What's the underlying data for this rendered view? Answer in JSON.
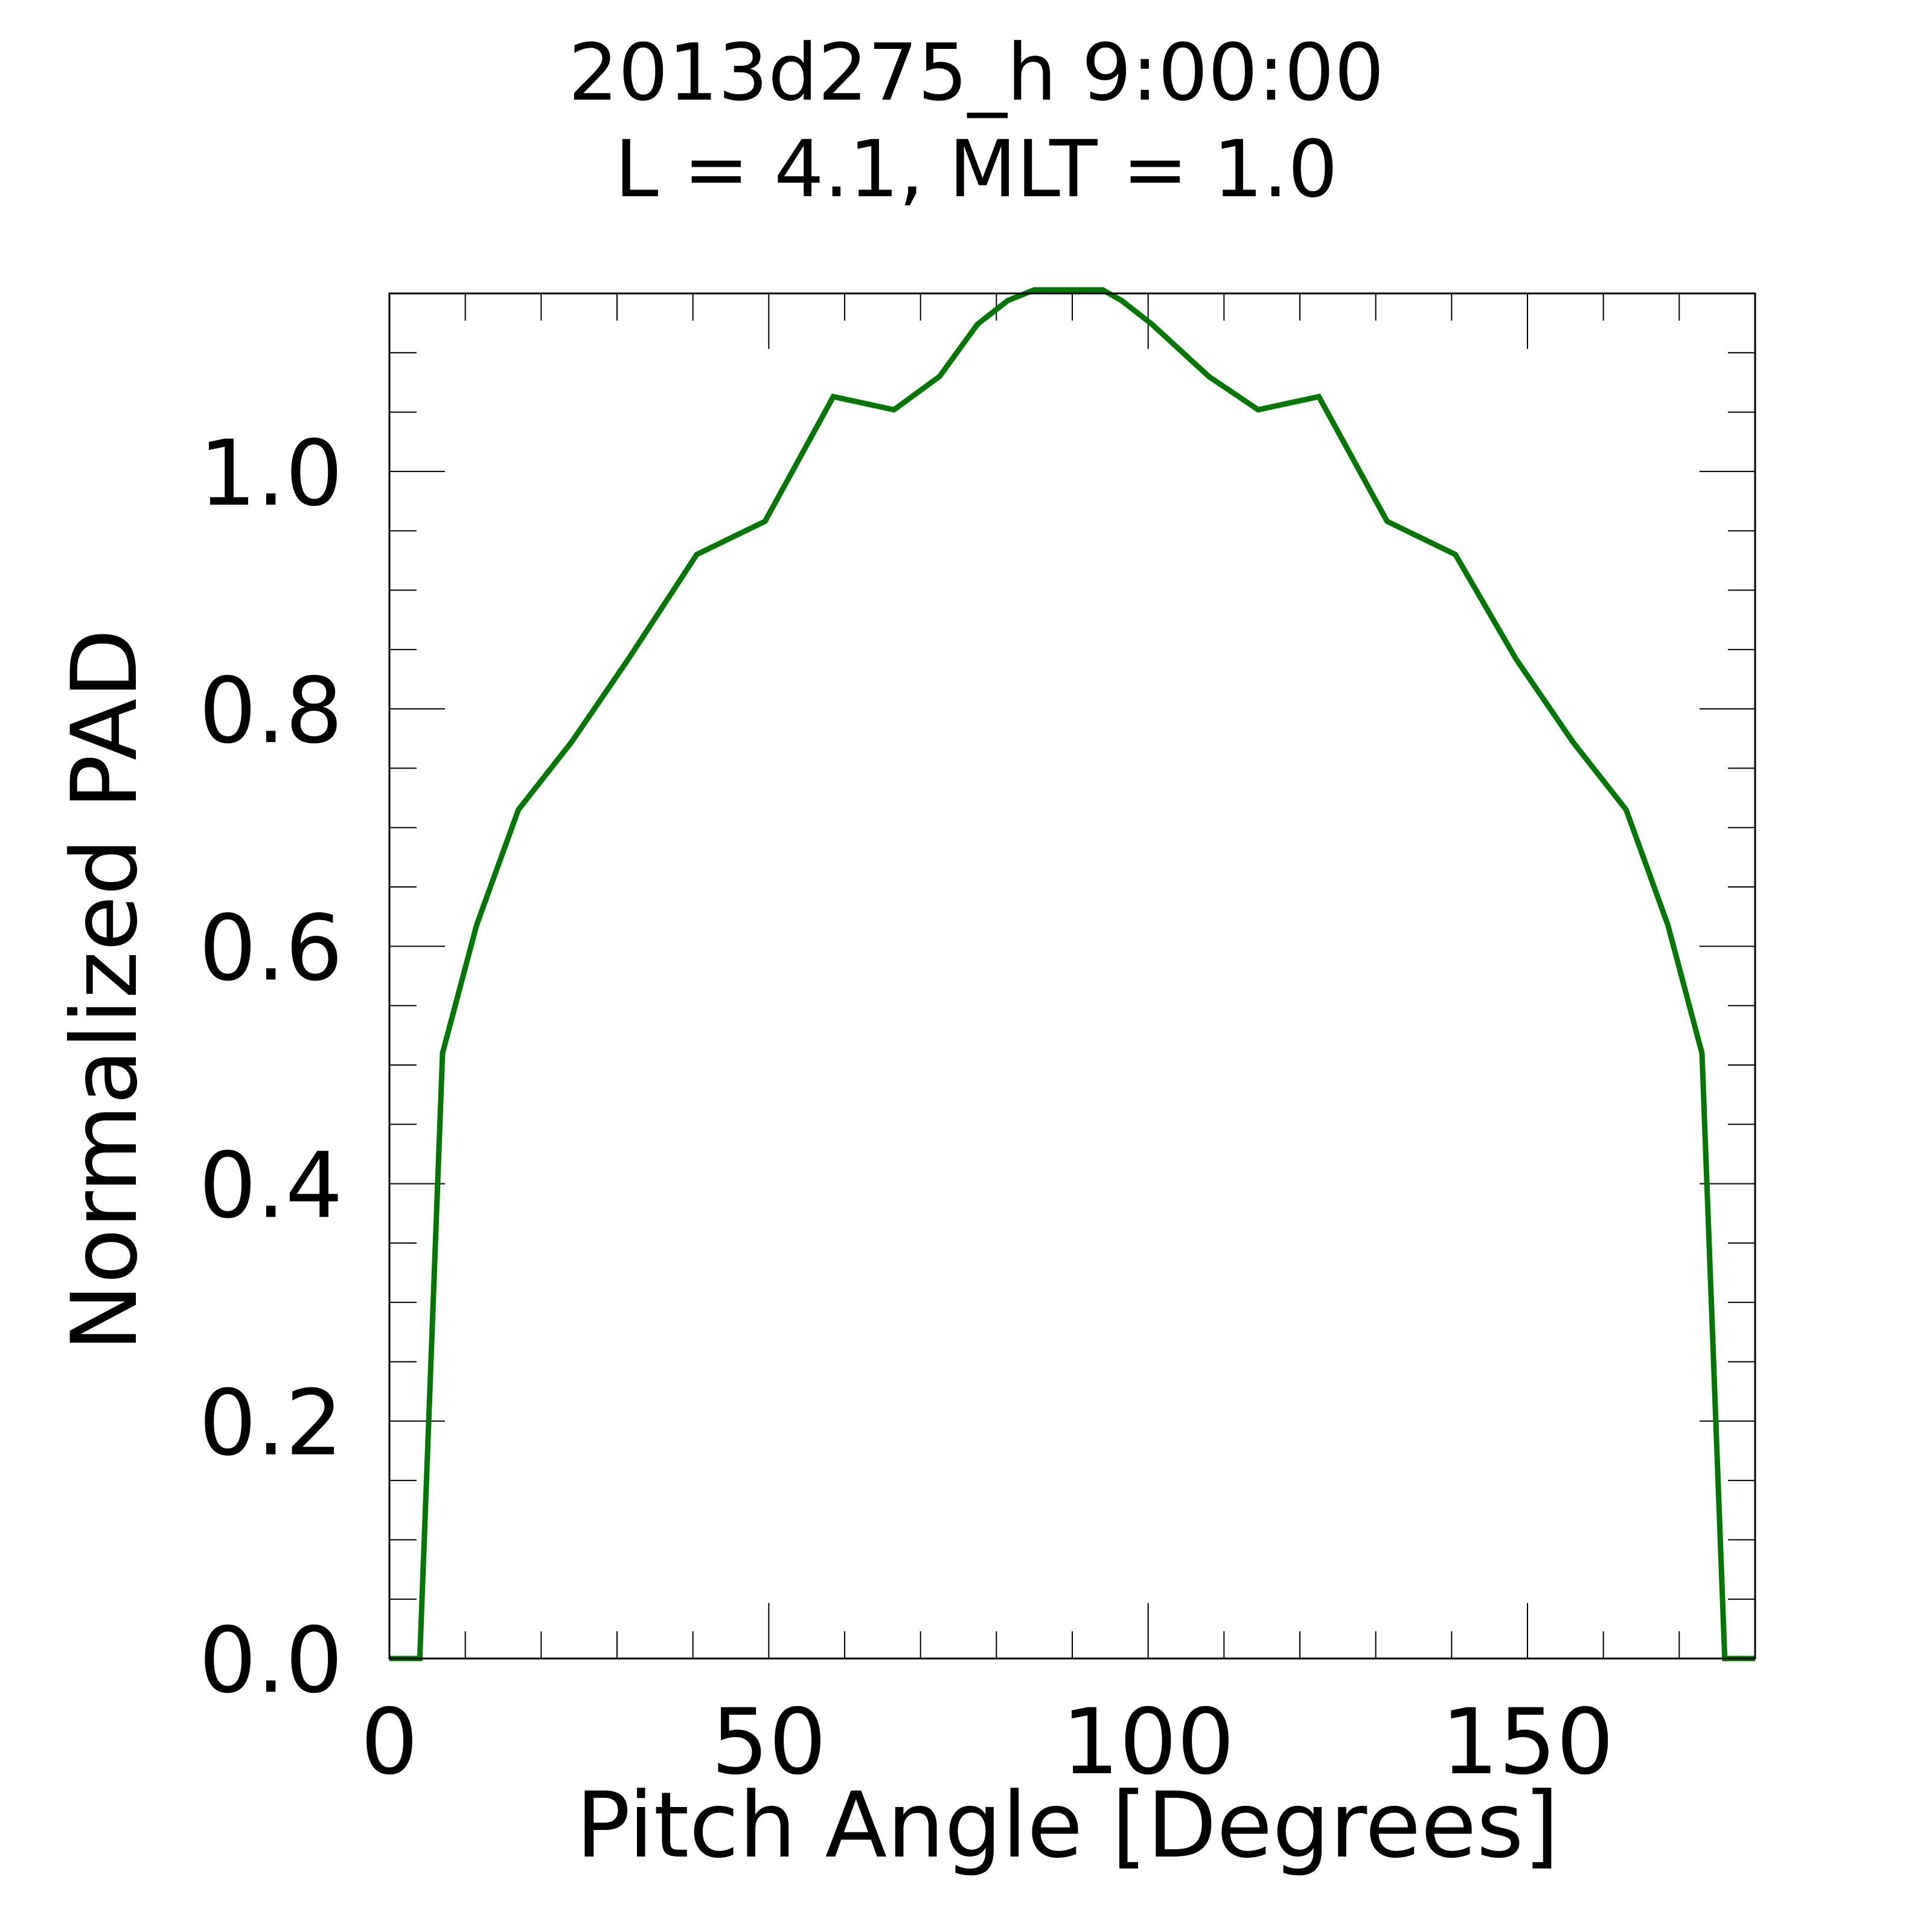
{
  "chart_data": {
    "type": "line",
    "title_line1": "2013d275_h   9:00:00",
    "title_line2": "L = 4.1, MLT =  1.0",
    "xlabel": "Pitch Angle [Degrees]",
    "ylabel": "Normalized PAD",
    "xlim": [
      0,
      180
    ],
    "ylim": [
      0,
      1.15
    ],
    "x_ticks": [
      0,
      50,
      100,
      150
    ],
    "x_tick_labels": [
      "0",
      "50",
      "100",
      "150"
    ],
    "x_minor_step": 10,
    "y_ticks": [
      0.0,
      0.2,
      0.4,
      0.6,
      0.8,
      1.0
    ],
    "y_tick_labels": [
      "0.0",
      "0.2",
      "0.4",
      "0.6",
      "0.8",
      "1.0"
    ],
    "y_minor_step": 0.05,
    "grid": false,
    "series": [
      {
        "color": "#007700",
        "x": [
          0,
          4,
          7,
          11.5,
          17,
          24,
          31.5,
          40.5,
          49.5,
          58.5,
          66.5,
          72.5,
          77.5,
          81.5,
          85,
          88,
          94,
          96.5,
          100.5,
          108,
          114.5,
          122.5,
          131.5,
          140.5,
          148.5,
          156,
          163,
          168.5,
          173,
          176,
          180
        ],
        "y": [
          0,
          0,
          0.51,
          0.618,
          0.715,
          0.772,
          0.842,
          0.93,
          0.958,
          1.063,
          1.052,
          1.08,
          1.124,
          1.144,
          1.153,
          1.153,
          1.153,
          1.144,
          1.124,
          1.08,
          1.052,
          1.063,
          0.958,
          0.93,
          0.842,
          0.772,
          0.715,
          0.618,
          0.51,
          0,
          0
        ]
      }
    ]
  }
}
